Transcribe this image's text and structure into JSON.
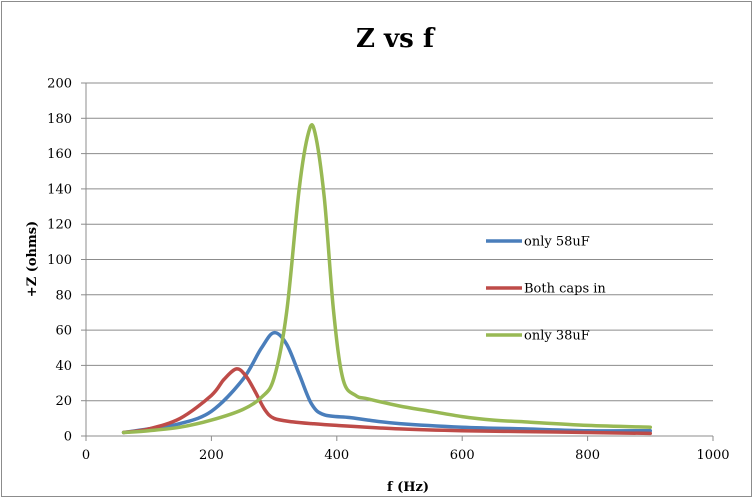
{
  "chart_data": {
    "type": "line",
    "title": "Z vs f",
    "xlabel": "f (Hz)",
    "ylabel": "+Z (ohms)",
    "xlim": [
      0,
      1000
    ],
    "ylim": [
      0,
      200
    ],
    "xticks": [
      0,
      200,
      400,
      600,
      800,
      1000
    ],
    "yticks": [
      0,
      20,
      40,
      60,
      80,
      100,
      120,
      140,
      160,
      180,
      200
    ],
    "grid": "horizontal",
    "legend_position": "right",
    "series": [
      {
        "name": "only 58uF",
        "color": "#4a7ebb",
        "points": [
          [
            60,
            2
          ],
          [
            100,
            4
          ],
          [
            150,
            7
          ],
          [
            200,
            14
          ],
          [
            250,
            32
          ],
          [
            280,
            50
          ],
          [
            300,
            58.5
          ],
          [
            320,
            52
          ],
          [
            340,
            35
          ],
          [
            360,
            18
          ],
          [
            380,
            12
          ],
          [
            420,
            10.5
          ],
          [
            450,
            9
          ],
          [
            500,
            7
          ],
          [
            600,
            5
          ],
          [
            700,
            4
          ],
          [
            800,
            3
          ],
          [
            900,
            3
          ]
        ]
      },
      {
        "name": "Both caps in",
        "color": "#be4b48",
        "points": [
          [
            60,
            2
          ],
          [
            100,
            4
          ],
          [
            150,
            10
          ],
          [
            200,
            23
          ],
          [
            220,
            32
          ],
          [
            240,
            38
          ],
          [
            255,
            34
          ],
          [
            270,
            25
          ],
          [
            285,
            15
          ],
          [
            300,
            10
          ],
          [
            330,
            8
          ],
          [
            360,
            7
          ],
          [
            400,
            6
          ],
          [
            500,
            4
          ],
          [
            600,
            3
          ],
          [
            700,
            2.5
          ],
          [
            800,
            2
          ],
          [
            900,
            1.5
          ]
        ]
      },
      {
        "name": "only 38uF",
        "color": "#98b954",
        "points": [
          [
            60,
            2
          ],
          [
            100,
            3
          ],
          [
            150,
            5
          ],
          [
            200,
            9
          ],
          [
            250,
            15
          ],
          [
            280,
            22
          ],
          [
            300,
            33
          ],
          [
            320,
            70
          ],
          [
            340,
            140
          ],
          [
            355,
            172
          ],
          [
            365,
            172
          ],
          [
            380,
            135
          ],
          [
            395,
            70
          ],
          [
            410,
            32
          ],
          [
            430,
            23
          ],
          [
            450,
            21
          ],
          [
            500,
            17
          ],
          [
            550,
            14
          ],
          [
            600,
            11
          ],
          [
            650,
            9
          ],
          [
            700,
            8
          ],
          [
            800,
            6
          ],
          [
            900,
            5
          ]
        ]
      }
    ]
  }
}
